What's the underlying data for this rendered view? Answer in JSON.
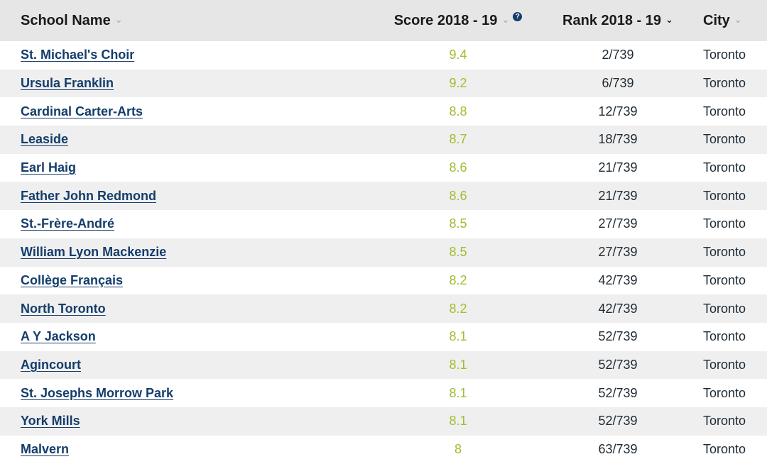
{
  "header": {
    "school_name": "School Name",
    "score": "Score 2018 - 19",
    "rank": "Rank 2018 - 19",
    "city": "City",
    "help_glyph": "?"
  },
  "colors": {
    "link": "#143d6b",
    "score": "#9fbe2f",
    "header_bg": "#e6e6e6",
    "stripe": "#efefef"
  },
  "rows": [
    {
      "name": "St. Michael's Choir",
      "score": "9.4",
      "rank": "2/739",
      "city": "Toronto"
    },
    {
      "name": "Ursula Franklin",
      "score": "9.2",
      "rank": "6/739",
      "city": "Toronto"
    },
    {
      "name": "Cardinal Carter-Arts",
      "score": "8.8",
      "rank": "12/739",
      "city": "Toronto"
    },
    {
      "name": "Leaside",
      "score": "8.7",
      "rank": "18/739",
      "city": "Toronto"
    },
    {
      "name": "Earl Haig",
      "score": "8.6",
      "rank": "21/739",
      "city": "Toronto"
    },
    {
      "name": "Father John Redmond",
      "score": "8.6",
      "rank": "21/739",
      "city": "Toronto"
    },
    {
      "name": "St.-Frère-André",
      "score": "8.5",
      "rank": "27/739",
      "city": "Toronto"
    },
    {
      "name": "William Lyon Mackenzie",
      "score": "8.5",
      "rank": "27/739",
      "city": "Toronto"
    },
    {
      "name": "Collège Français",
      "score": "8.2",
      "rank": "42/739",
      "city": "Toronto"
    },
    {
      "name": "North Toronto",
      "score": "8.2",
      "rank": "42/739",
      "city": "Toronto"
    },
    {
      "name": "A Y Jackson",
      "score": "8.1",
      "rank": "52/739",
      "city": "Toronto"
    },
    {
      "name": "Agincourt",
      "score": "8.1",
      "rank": "52/739",
      "city": "Toronto"
    },
    {
      "name": "St. Josephs Morrow Park",
      "score": "8.1",
      "rank": "52/739",
      "city": "Toronto"
    },
    {
      "name": "York Mills",
      "score": "8.1",
      "rank": "52/739",
      "city": "Toronto"
    },
    {
      "name": "Malvern",
      "score": "8",
      "rank": "63/739",
      "city": "Toronto"
    }
  ]
}
